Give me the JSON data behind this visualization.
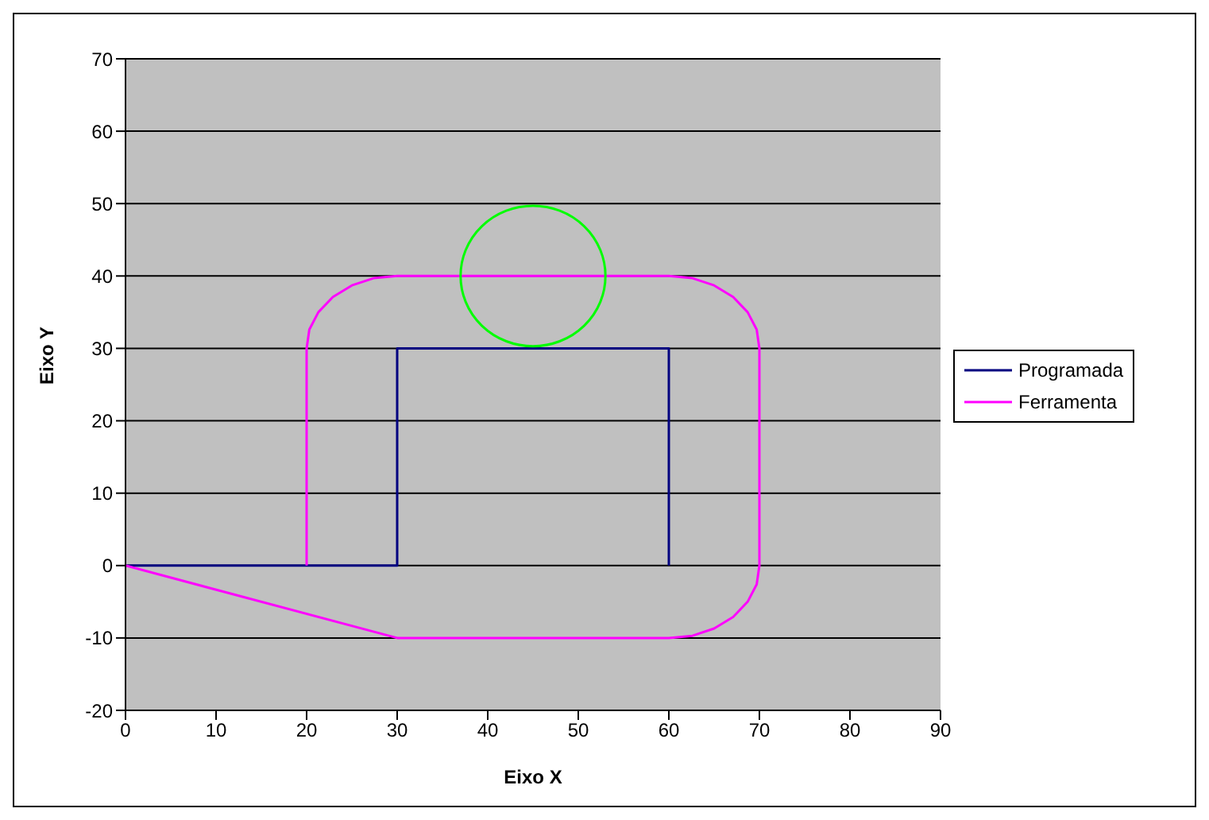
{
  "chart_data": {
    "type": "line",
    "xlabel": "Eixo X",
    "ylabel": "Eixo Y",
    "xlim": [
      0,
      90
    ],
    "xticks": [
      0,
      10,
      20,
      30,
      40,
      50,
      60,
      70,
      80,
      90
    ],
    "ylim": [
      -20,
      70
    ],
    "yticks": [
      -20,
      -10,
      0,
      10,
      20,
      30,
      40,
      50,
      60,
      70
    ],
    "grid": "y",
    "legend": "right",
    "series": [
      {
        "name": "Programada",
        "color": "#000080",
        "x": [
          0,
          30,
          30,
          60,
          60
        ],
        "values": [
          0,
          0,
          30,
          30,
          0
        ]
      },
      {
        "name": "Ferramenta",
        "color": "#ff00ff",
        "x": [
          0,
          30,
          60,
          62.6,
          65,
          67.1,
          68.7,
          69.7,
          70,
          70,
          69.7,
          68.7,
          67.1,
          65,
          62.6,
          60,
          30,
          27.4,
          25,
          22.9,
          21.3,
          20.3,
          20,
          20
        ],
        "values": [
          0,
          -10,
          -10,
          -9.7,
          -8.7,
          -7.1,
          -5,
          -2.6,
          0,
          30,
          32.6,
          35,
          37.1,
          38.7,
          39.7,
          40,
          40,
          39.7,
          38.7,
          37.1,
          35,
          32.6,
          30,
          0
        ]
      }
    ]
  }
}
